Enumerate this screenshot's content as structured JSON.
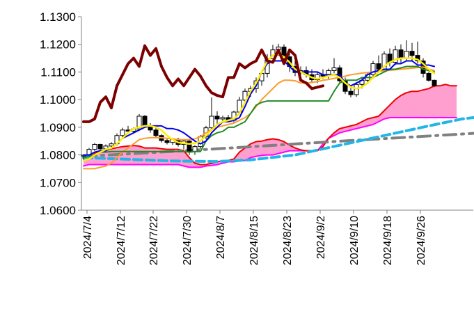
{
  "chart_data": {
    "type": "line",
    "title": "",
    "xlabel": "",
    "ylabel": "",
    "ylim": [
      1.06,
      1.13
    ],
    "y_ticks": [
      "1.0600",
      "1.0700",
      "1.0800",
      "1.0900",
      "1.1000",
      "1.1100",
      "1.1200",
      "1.1300"
    ],
    "x_ticks": [
      "2024/7/4",
      "2024/7/12",
      "2024/7/22",
      "2024/7/30",
      "2024/8/7",
      "2024/8/15",
      "2024/8/23",
      "2024/9/2",
      "2024/9/10",
      "2024/9/18",
      "2024/9/26"
    ],
    "grid": false,
    "legend": "none",
    "colors": {
      "candle_up": "#ffffff",
      "candle_down": "#000000",
      "chikou": "#7b0000",
      "tenkan": "#0000ee",
      "kijun": "#228b22",
      "ma_short": "#ffee00",
      "ma_long": "#ff9a2e",
      "span_a": "#ee0000",
      "span_b": "#ff00ff",
      "cloud": "#ff9fd0",
      "dash_gray": "#808080",
      "dash_cyan": "#22b5e8"
    },
    "candles": [
      [
        1.0796,
        1.0802,
        1.0782,
        1.0799
      ],
      [
        1.0799,
        1.0825,
        1.0794,
        1.082
      ],
      [
        1.082,
        1.0843,
        1.0814,
        1.0838
      ],
      [
        1.0838,
        1.084,
        1.0818,
        1.0822
      ],
      [
        1.0822,
        1.0838,
        1.0816,
        1.0832
      ],
      [
        1.0832,
        1.0846,
        1.0824,
        1.084
      ],
      [
        1.084,
        1.0878,
        1.0834,
        1.087
      ],
      [
        1.087,
        1.0898,
        1.0862,
        1.089
      ],
      [
        1.089,
        1.0905,
        1.088,
        1.0886
      ],
      [
        1.0886,
        1.09,
        1.0876,
        1.0894
      ],
      [
        1.0894,
        1.0948,
        1.0888,
        1.094
      ],
      [
        1.094,
        1.0944,
        1.09,
        1.0905
      ],
      [
        1.0905,
        1.0915,
        1.088,
        1.089
      ],
      [
        1.089,
        1.0898,
        1.086,
        1.087
      ],
      [
        1.087,
        1.0875,
        1.0845,
        1.0852
      ],
      [
        1.0852,
        1.0862,
        1.0838,
        1.0845
      ],
      [
        1.0845,
        1.086,
        1.0836,
        1.0856
      ],
      [
        1.0856,
        1.0862,
        1.083,
        1.0838
      ],
      [
        1.0838,
        1.0855,
        1.082,
        1.085
      ],
      [
        1.085,
        1.0858,
        1.08,
        1.0812
      ],
      [
        1.0812,
        1.0835,
        1.08,
        1.083
      ],
      [
        1.083,
        1.0872,
        1.0822,
        1.0866
      ],
      [
        1.0866,
        1.0905,
        1.0856,
        1.0898
      ],
      [
        1.0898,
        1.1008,
        1.0888,
        1.094
      ],
      [
        1.094,
        1.0958,
        1.0912,
        1.093
      ],
      [
        1.093,
        1.0942,
        1.0915,
        1.0935
      ],
      [
        1.0935,
        1.0945,
        1.0918,
        1.0925
      ],
      [
        1.0925,
        1.096,
        1.0918,
        1.0955
      ],
      [
        1.0955,
        1.101,
        1.0948,
        1.0998
      ],
      [
        1.0998,
        1.104,
        1.0985,
        1.103
      ],
      [
        1.103,
        1.105,
        1.101,
        1.104
      ],
      [
        1.104,
        1.108,
        1.1025,
        1.1068
      ],
      [
        1.1068,
        1.1105,
        1.105,
        1.1095
      ],
      [
        1.1095,
        1.1165,
        1.108,
        1.1148
      ],
      [
        1.1148,
        1.1198,
        1.113,
        1.118
      ],
      [
        1.118,
        1.1202,
        1.1158,
        1.119
      ],
      [
        1.119,
        1.12,
        1.114,
        1.1155
      ],
      [
        1.1155,
        1.118,
        1.11,
        1.112
      ],
      [
        1.112,
        1.114,
        1.1085,
        1.1098
      ],
      [
        1.1098,
        1.112,
        1.1078,
        1.1105
      ],
      [
        1.1105,
        1.112,
        1.108,
        1.109
      ],
      [
        1.109,
        1.111,
        1.106,
        1.1072
      ],
      [
        1.1072,
        1.11,
        1.106,
        1.109
      ],
      [
        1.109,
        1.111,
        1.1075,
        1.1085
      ],
      [
        1.1085,
        1.1112,
        1.1075,
        1.1105
      ],
      [
        1.1105,
        1.115,
        1.1095,
        1.1115
      ],
      [
        1.1115,
        1.1125,
        1.106,
        1.1068
      ],
      [
        1.1068,
        1.108,
        1.102,
        1.103
      ],
      [
        1.103,
        1.1045,
        1.1008,
        1.1018
      ],
      [
        1.1018,
        1.106,
        1.101,
        1.1055
      ],
      [
        1.1055,
        1.108,
        1.104,
        1.107
      ],
      [
        1.107,
        1.11,
        1.106,
        1.109
      ],
      [
        1.109,
        1.114,
        1.1075,
        1.113
      ],
      [
        1.113,
        1.116,
        1.11,
        1.111
      ],
      [
        1.111,
        1.1175,
        1.1098,
        1.1165
      ],
      [
        1.1165,
        1.1185,
        1.112,
        1.1135
      ],
      [
        1.1135,
        1.1195,
        1.1125,
        1.118
      ],
      [
        1.118,
        1.12,
        1.113,
        1.115
      ],
      [
        1.115,
        1.1215,
        1.114,
        1.1175
      ],
      [
        1.1175,
        1.1205,
        1.114,
        1.116
      ],
      [
        1.116,
        1.121,
        1.113,
        1.114
      ],
      [
        1.114,
        1.115,
        1.108,
        1.1095
      ],
      [
        1.1095,
        1.11,
        1.1065,
        1.107
      ],
      [
        1.107,
        1.1072,
        1.1045,
        1.105
      ]
    ],
    "chikou": [
      1.092,
      1.092,
      1.093,
      1.099,
      1.101,
      1.097,
      1.105,
      1.109,
      1.113,
      1.115,
      1.112,
      1.1195,
      1.116,
      1.1185,
      1.112,
      1.108,
      1.105,
      1.1075,
      1.105,
      1.108,
      1.111,
      1.1085,
      1.105,
      1.1025,
      1.1015,
      1.101,
      1.108,
      1.108,
      1.113,
      1.1115,
      1.113,
      1.114,
      1.118,
      1.114,
      1.1135,
      1.118,
      1.113,
      1.118,
      1.116,
      1.107,
      1.106,
      1.104,
      1.1045,
      1.105
    ],
    "tenkan": [
      1.08,
      1.08,
      1.081,
      1.0815,
      1.0815,
      1.0825,
      1.084,
      1.086,
      1.087,
      1.088,
      1.089,
      1.09,
      1.0905,
      1.0905,
      1.0905,
      1.0895,
      1.0895,
      1.089,
      1.088,
      1.0865,
      1.085,
      1.084,
      1.085,
      1.088,
      1.09,
      1.092,
      1.092,
      1.0925,
      1.0935,
      1.0975,
      1.102,
      1.105,
      1.11,
      1.113,
      1.114,
      1.114,
      1.114,
      1.112,
      1.11,
      1.11,
      1.11,
      1.11,
      1.11,
      1.109,
      1.109,
      1.109,
      1.109,
      1.106,
      1.105,
      1.106,
      1.107,
      1.109,
      1.11,
      1.1105,
      1.111,
      1.111,
      1.113,
      1.113,
      1.114,
      1.114,
      1.1125,
      1.1125,
      1.1125,
      1.112
    ],
    "kijun": [
      1.079,
      1.0795,
      1.08,
      1.081,
      1.081,
      1.0812,
      1.0812,
      1.0812,
      1.0812,
      1.0812,
      1.0812,
      1.0812,
      1.0812,
      1.0812,
      1.0812,
      1.0812,
      1.0812,
      1.0812,
      1.0812,
      1.081,
      1.0812,
      1.0812,
      1.085,
      1.087,
      1.088,
      1.0885,
      1.09,
      1.09,
      1.091,
      1.092,
      1.095,
      1.098,
      1.099,
      1.0995,
      1.0995,
      1.0995,
      1.0995,
      1.0995,
      1.0995,
      1.0995,
      1.0995,
      1.0995,
      1.0995,
      1.0995,
      1.0995,
      1.103,
      1.106,
      1.107,
      1.107,
      1.107,
      1.108,
      1.108,
      1.108,
      1.109,
      1.11,
      1.111,
      1.111,
      1.1115,
      1.112,
      1.112,
      1.112,
      1.111,
      1.1105,
      1.11
    ],
    "ma_short": [
      1.078,
      1.0785,
      1.08,
      1.081,
      1.082,
      1.0825,
      1.084,
      1.086,
      1.088,
      1.0895,
      1.09,
      1.0905,
      1.0905,
      1.09,
      1.089,
      1.087,
      1.0855,
      1.0845,
      1.0842,
      1.084,
      1.0842,
      1.085,
      1.087,
      1.089,
      1.091,
      1.092,
      1.0925,
      1.093,
      1.095,
      1.099,
      1.103,
      1.106,
      1.11,
      1.114,
      1.116,
      1.1165,
      1.1155,
      1.1135,
      1.111,
      1.11,
      1.109,
      1.108,
      1.1075,
      1.108,
      1.1085,
      1.109,
      1.108,
      1.106,
      1.1045,
      1.104,
      1.1045,
      1.106,
      1.108,
      1.11,
      1.112,
      1.1135,
      1.1145,
      1.115,
      1.115,
      1.115,
      1.1145,
      1.113,
      1.111,
      1.1095
    ],
    "ma_long": [
      1.075,
      1.075,
      1.075,
      1.0755,
      1.076,
      1.077,
      1.079,
      1.081,
      1.0825,
      1.084,
      1.0855,
      1.086,
      1.0862,
      1.0862,
      1.0862,
      1.086,
      1.0858,
      1.0855,
      1.0855,
      1.0855,
      1.0858,
      1.0866,
      1.088,
      1.0892,
      1.09,
      1.0905,
      1.091,
      1.0915,
      1.0925,
      1.0935,
      1.095,
      1.0975,
      1.1,
      1.102,
      1.104,
      1.106,
      1.107,
      1.107,
      1.1068,
      1.106,
      1.106,
      1.1062,
      1.1065,
      1.107,
      1.1073,
      1.1077,
      1.108,
      1.1085,
      1.109,
      1.1093,
      1.1096,
      1.1098,
      1.11,
      1.1102,
      1.1104,
      1.1106,
      1.1108,
      1.111,
      1.1112,
      1.1114,
      1.1116,
      1.1118,
      1.111,
      1.1105
    ],
    "span_a": [
      1.0785,
      1.079,
      1.0805,
      1.0815,
      1.0818,
      1.0822,
      1.0826,
      1.083,
      1.0832,
      1.0834,
      1.0832,
      1.0825,
      1.0825,
      1.0825,
      1.0822,
      1.082,
      1.082,
      1.082,
      1.0815,
      1.079,
      1.077,
      1.0765,
      1.0765,
      1.077,
      1.0775,
      1.0778,
      1.078,
      1.0785,
      1.081,
      1.0825,
      1.084,
      1.0848,
      1.085,
      1.0855,
      1.0858,
      1.0855,
      1.0848,
      1.0835,
      1.0825,
      1.0818,
      1.0815,
      1.0815,
      1.0815,
      1.083,
      1.086,
      1.088,
      1.0895,
      1.09,
      1.0905,
      1.091,
      1.092,
      1.093,
      1.0935,
      1.094,
      1.096,
      1.098,
      1.1,
      1.1015,
      1.1025,
      1.103,
      1.103,
      1.1035,
      1.104,
      1.105,
      1.105,
      1.1055,
      1.105,
      1.105
    ],
    "span_b": [
      1.076,
      1.0765,
      1.0765,
      1.0765,
      1.0765,
      1.0765,
      1.0765,
      1.0765,
      1.0765,
      1.0765,
      1.0765,
      1.0765,
      1.0765,
      1.0765,
      1.0765,
      1.0765,
      1.0765,
      1.0765,
      1.076,
      1.0755,
      1.0755,
      1.0755,
      1.076,
      1.0762,
      1.0765,
      1.077,
      1.0775,
      1.0775,
      1.0778,
      1.078,
      1.079,
      1.0795,
      1.0798,
      1.08,
      1.08,
      1.0805,
      1.081,
      1.0815,
      1.0815,
      1.0815,
      1.0815,
      1.0815,
      1.0815,
      1.084,
      1.086,
      1.087,
      1.088,
      1.0885,
      1.089,
      1.0895,
      1.09,
      1.0905,
      1.091,
      1.092,
      1.093,
      1.0935,
      1.0935,
      1.0935,
      1.0935,
      1.0935,
      1.0935,
      1.0935,
      1.0935,
      1.0935,
      1.0935,
      1.0935,
      1.0935,
      1.0935
    ],
    "dash_gray": [
      [
        0,
        1.0795
      ],
      [
        12,
        1.0808
      ],
      [
        24,
        1.0822
      ],
      [
        36,
        1.0837
      ],
      [
        48,
        1.0852
      ],
      [
        60,
        1.0866
      ],
      [
        70,
        1.0878
      ]
    ],
    "dash_cyan": [
      [
        0,
        1.079
      ],
      [
        8,
        1.0784
      ],
      [
        16,
        1.0778
      ],
      [
        24,
        1.0776
      ],
      [
        30,
        1.0782
      ],
      [
        38,
        1.08
      ],
      [
        46,
        1.0835
      ],
      [
        54,
        1.087
      ],
      [
        62,
        1.0905
      ],
      [
        68,
        1.093
      ],
      [
        72,
        1.094
      ]
    ]
  }
}
